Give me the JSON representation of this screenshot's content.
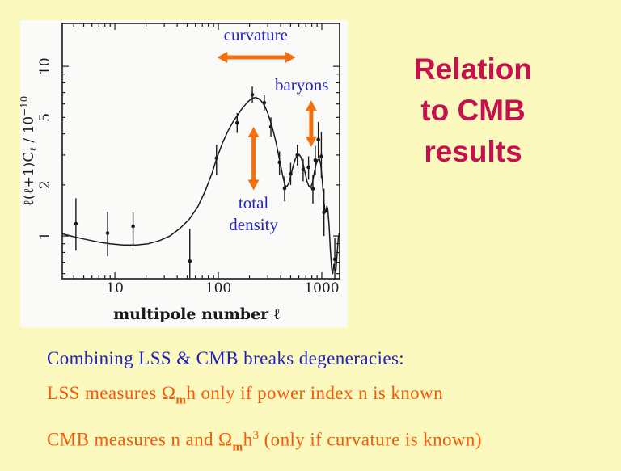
{
  "colors": {
    "background": "#FBF9BE",
    "panel": "#FAFAF8",
    "ink": "#1a1a1a",
    "annotation_blue": "#2323BC",
    "arrow_orange": "#F2700E",
    "title_crimson": "#C5114E",
    "bullet_blue": "#2222BB",
    "bullet_orange": "#F65A08"
  },
  "title": {
    "lines": [
      "Relation",
      "to CMB",
      "results"
    ]
  },
  "bullets": [
    {
      "color": "blue",
      "segments": [
        {
          "t": "Combining LSS & CMB breaks degeneracies:"
        }
      ]
    },
    {
      "color": "orange",
      "segments": [
        {
          "t": "LSS measures Ω"
        },
        {
          "t": "m",
          "sub": true
        },
        {
          "t": "h only if power index n is known"
        }
      ]
    },
    {
      "color": "orange",
      "segments": [
        {
          "t": "CMB measures n and Ω"
        },
        {
          "t": "m",
          "sub": true
        },
        {
          "t": "h"
        },
        {
          "t": "3",
          "sup": true
        },
        {
          "t": " (only if curvature is known)"
        }
      ]
    }
  ],
  "chart_data": {
    "type": "line",
    "title": "",
    "xlabel": "multipole number ℓ",
    "ylabel_segments": [
      {
        "t": "ℓ(ℓ+1)C"
      },
      {
        "t": "ℓ",
        "sub": true
      },
      {
        "t": " / 10"
      },
      {
        "t": "−10",
        "sup": true
      }
    ],
    "xscale": "log",
    "yscale": "log",
    "xlim": [
      3.1,
      1486
    ],
    "ylim": [
      0.56,
      17.9
    ],
    "xticks": [
      10,
      100,
      1000
    ],
    "yticks": [
      1,
      2,
      5,
      10
    ],
    "grid": false,
    "model_curve": [
      [
        3.1,
        1.03
      ],
      [
        4,
        0.99
      ],
      [
        5,
        0.96
      ],
      [
        7,
        0.92
      ],
      [
        9,
        0.9
      ],
      [
        12,
        0.885
      ],
      [
        16,
        0.885
      ],
      [
        21,
        0.9
      ],
      [
        27,
        0.94
      ],
      [
        34,
        1.0
      ],
      [
        42,
        1.1
      ],
      [
        52,
        1.25
      ],
      [
        63,
        1.48
      ],
      [
        75,
        1.85
      ],
      [
        87,
        2.35
      ],
      [
        96,
        2.85
      ],
      [
        110,
        3.55
      ],
      [
        125,
        4.2
      ],
      [
        140,
        4.75
      ],
      [
        155,
        5.2
      ],
      [
        170,
        5.65
      ],
      [
        185,
        6.0
      ],
      [
        200,
        6.3
      ],
      [
        215,
        6.5
      ],
      [
        230,
        6.55
      ],
      [
        245,
        6.45
      ],
      [
        260,
        6.25
      ],
      [
        280,
        5.85
      ],
      [
        300,
        5.3
      ],
      [
        320,
        4.7
      ],
      [
        340,
        4.15
      ],
      [
        360,
        3.6
      ],
      [
        380,
        3.05
      ],
      [
        400,
        2.6
      ],
      [
        420,
        2.25
      ],
      [
        440,
        2.0
      ],
      [
        460,
        1.95
      ],
      [
        480,
        2.05
      ],
      [
        505,
        2.3
      ],
      [
        530,
        2.6
      ],
      [
        555,
        2.85
      ],
      [
        580,
        3.0
      ],
      [
        605,
        3.02
      ],
      [
        630,
        2.9
      ],
      [
        660,
        2.65
      ],
      [
        690,
        2.35
      ],
      [
        720,
        2.1
      ],
      [
        750,
        1.97
      ],
      [
        780,
        1.93
      ],
      [
        810,
        2.05
      ],
      [
        845,
        2.35
      ],
      [
        880,
        2.65
      ],
      [
        915,
        2.82
      ],
      [
        945,
        2.85
      ],
      [
        975,
        2.65
      ],
      [
        1005,
        2.2
      ],
      [
        1035,
        1.75
      ],
      [
        1065,
        1.45
      ],
      [
        1095,
        1.38
      ],
      [
        1120,
        1.5
      ],
      [
        1145,
        1.42
      ],
      [
        1175,
        1.15
      ],
      [
        1210,
        0.82
      ],
      [
        1245,
        0.64
      ],
      [
        1275,
        0.6
      ],
      [
        1305,
        0.68
      ],
      [
        1335,
        0.63
      ],
      [
        1370,
        0.63
      ],
      [
        1405,
        0.78
      ],
      [
        1445,
        0.98
      ],
      [
        1480,
        1.05
      ]
    ],
    "data_points": [
      [
        4.2,
        1.18,
        0.82,
        1.67
      ],
      [
        8.5,
        1.04,
        0.76,
        1.39
      ],
      [
        15,
        1.14,
        0.87,
        1.37
      ],
      [
        53,
        0.71,
        0.56,
        1.1
      ],
      [
        96,
        2.88,
        2.3,
        3.45
      ],
      [
        152,
        4.65,
        4.05,
        5.3
      ],
      [
        213,
        6.8,
        6.1,
        7.6
      ],
      [
        278,
        6.1,
        5.5,
        6.75
      ],
      [
        322,
        4.4,
        3.85,
        5.0
      ],
      [
        390,
        2.72,
        2.3,
        3.15
      ],
      [
        437,
        1.91,
        1.6,
        2.25
      ],
      [
        500,
        2.33,
        2.0,
        2.7
      ],
      [
        580,
        3.0,
        2.6,
        3.45
      ],
      [
        660,
        2.46,
        2.1,
        2.85
      ],
      [
        745,
        2.54,
        2.15,
        2.95
      ],
      [
        820,
        1.9,
        1.55,
        2.3
      ],
      [
        865,
        2.8,
        2.3,
        3.4
      ],
      [
        925,
        3.7,
        2.9,
        4.7
      ],
      [
        990,
        2.95,
        2.2,
        4.1
      ],
      [
        1050,
        1.38,
        1.0,
        1.9
      ],
      [
        1335,
        0.73,
        0.55,
        0.97
      ]
    ],
    "annotations": [
      {
        "id": "curvature",
        "lines": [
          "curvature"
        ],
        "text_at": {
          "l": 230,
          "v": 14.2
        },
        "arrow": {
          "dir": "h",
          "v": 11.3,
          "l1": 97,
          "l2": 560
        }
      },
      {
        "id": "baryons",
        "lines": [
          "baryons"
        ],
        "text_at": {
          "l": 640,
          "v": 7.2
        },
        "arrow": {
          "dir": "v",
          "l": 790,
          "v1": 6.3,
          "v2": 3.35
        }
      },
      {
        "id": "total-density",
        "lines": [
          "total",
          "density"
        ],
        "text_at": {
          "l": 219,
          "v": 1.45
        },
        "arrow": {
          "dir": "v",
          "l": 219,
          "v1": 4.4,
          "v2": 1.86
        }
      }
    ]
  }
}
